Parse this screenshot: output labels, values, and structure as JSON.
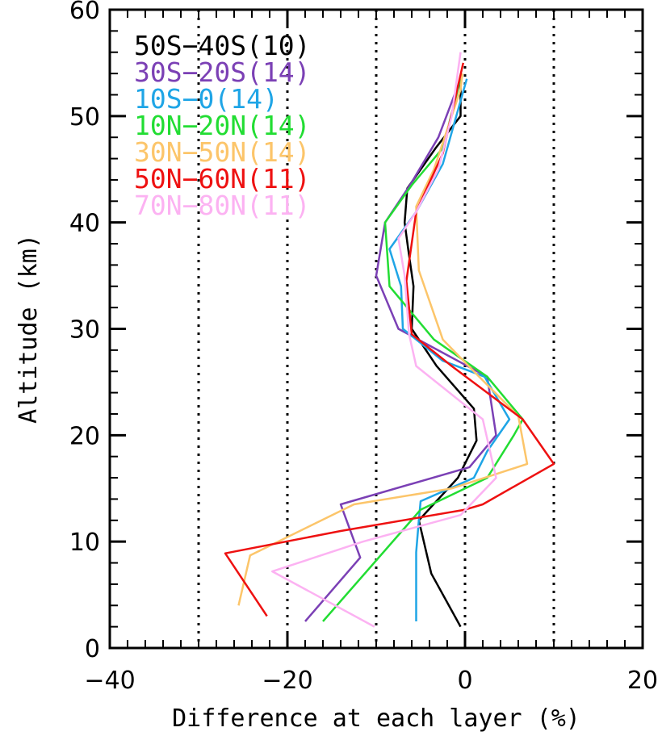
{
  "chart_data": {
    "type": "line",
    "title": "",
    "xlabel": "Difference at each layer (%)",
    "ylabel": "Altitude (km)",
    "xlim": [
      -40,
      20
    ],
    "ylim": [
      0,
      60
    ],
    "x_ticks": [
      -40,
      -20,
      0,
      20
    ],
    "y_ticks": [
      0,
      10,
      20,
      30,
      40,
      50,
      60
    ],
    "x_tick_labels": [
      "−40",
      "−20",
      "0",
      "20"
    ],
    "y_tick_labels": [
      "0",
      "10",
      "20",
      "30",
      "40",
      "50",
      "60"
    ],
    "vertical_reference_lines": [
      -30,
      -20,
      -10,
      0,
      10
    ],
    "legend_position": "top-left",
    "series": [
      {
        "name": "50S−40S(10)",
        "color": "#000000",
        "points": [
          [
            -0.5,
            2
          ],
          [
            -3.8,
            7
          ],
          [
            -5.2,
            12
          ],
          [
            -0.8,
            16
          ],
          [
            1.3,
            19.5
          ],
          [
            1.0,
            22.5
          ],
          [
            -3.2,
            26.5
          ],
          [
            -6.0,
            30
          ],
          [
            -5.8,
            34
          ],
          [
            -6.4,
            37.5
          ],
          [
            -6.8,
            40
          ],
          [
            -6.5,
            43.2
          ],
          [
            -3.3,
            47
          ],
          [
            -0.5,
            50
          ],
          [
            -0.5,
            53.5
          ]
        ]
      },
      {
        "name": "30S−20S(14)",
        "color": "#7b40b5",
        "points": [
          [
            -18,
            2.5
          ],
          [
            -11.8,
            8.5
          ],
          [
            -14,
            13.5
          ],
          [
            0.5,
            17
          ],
          [
            3.5,
            20
          ],
          [
            2.5,
            25.5
          ],
          [
            -7.5,
            30
          ],
          [
            -10,
            35
          ],
          [
            -9.0,
            40
          ],
          [
            -6.2,
            43.5
          ],
          [
            -3.0,
            48
          ],
          [
            -0.5,
            53.5
          ]
        ]
      },
      {
        "name": "10S−0(14)",
        "color": "#1fa5e6",
        "points": [
          [
            -5.5,
            2.5
          ],
          [
            -5.5,
            9
          ],
          [
            -5.2,
            12
          ],
          [
            -5.0,
            13.8
          ],
          [
            1.0,
            16
          ],
          [
            2.5,
            18.5
          ],
          [
            5.0,
            21.5
          ],
          [
            2.2,
            25.5
          ],
          [
            -2.5,
            27
          ],
          [
            -7.0,
            30
          ],
          [
            -7.2,
            34
          ],
          [
            -8.5,
            37.5
          ],
          [
            -5.5,
            41
          ],
          [
            -2.5,
            45.5
          ],
          [
            0.2,
            53.5
          ]
        ]
      },
      {
        "name": "10N−20N(14)",
        "color": "#22dd33",
        "points": [
          [
            -16,
            2.5
          ],
          [
            -5,
            13
          ],
          [
            2.5,
            16
          ],
          [
            5.5,
            20
          ],
          [
            6.5,
            21.5
          ],
          [
            2.5,
            25.5
          ],
          [
            -3.5,
            29
          ],
          [
            -8.5,
            34
          ],
          [
            -9.0,
            40
          ],
          [
            -6.0,
            43.5
          ],
          [
            -2.5,
            47
          ],
          [
            -0.5,
            53.5
          ]
        ]
      },
      {
        "name": "30N−50N(14)",
        "color": "#fcc56a",
        "points": [
          [
            -25.5,
            4
          ],
          [
            -24.2,
            8.7
          ],
          [
            -12.5,
            13.5
          ],
          [
            -1.5,
            15
          ],
          [
            7.0,
            17.3
          ],
          [
            6.0,
            21.8
          ],
          [
            1.0,
            26
          ],
          [
            -2.5,
            29
          ],
          [
            -5.2,
            35.5
          ],
          [
            -5.5,
            41.5
          ],
          [
            -3.5,
            45
          ],
          [
            -0.5,
            52.5
          ],
          [
            -0.3,
            54
          ]
        ]
      },
      {
        "name": "50N−60N(11)",
        "color": "#ee1111",
        "points": [
          [
            -22.3,
            3
          ],
          [
            -27,
            8.9
          ],
          [
            -14,
            11
          ],
          [
            0,
            13
          ],
          [
            2,
            13.5
          ],
          [
            10,
            17.3
          ],
          [
            6.5,
            21.5
          ],
          [
            -1.5,
            26.5
          ],
          [
            -6.0,
            29.5
          ],
          [
            -6.6,
            34.5
          ],
          [
            -5.5,
            41
          ],
          [
            -2.5,
            46.5
          ],
          [
            -0.2,
            55
          ]
        ]
      },
      {
        "name": "70N−80N(11)",
        "color": "#fcb2f2",
        "points": [
          [
            -10.2,
            2
          ],
          [
            -21.7,
            7.2
          ],
          [
            -11.5,
            10
          ],
          [
            -0.5,
            12.5
          ],
          [
            3.5,
            16
          ],
          [
            2.0,
            21.5
          ],
          [
            -5.5,
            26.5
          ],
          [
            -6.3,
            29.5
          ],
          [
            -6.8,
            35
          ],
          [
            -7.5,
            38.5
          ],
          [
            -5.5,
            41
          ],
          [
            -3.0,
            45
          ],
          [
            -1.5,
            50
          ],
          [
            -0.5,
            56
          ]
        ]
      }
    ]
  }
}
